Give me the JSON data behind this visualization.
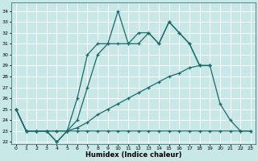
{
  "xlabel": "Humidex (Indice chaleur)",
  "bg_color": "#c8e8e8",
  "line_color": "#1a6b6b",
  "grid_color": "#b0d8d8",
  "xlim": [
    -0.5,
    23.5
  ],
  "ylim": [
    21.8,
    34.8
  ],
  "xticks": [
    0,
    1,
    2,
    3,
    4,
    5,
    6,
    7,
    8,
    9,
    10,
    11,
    12,
    13,
    14,
    15,
    16,
    17,
    18,
    19,
    20,
    21,
    22,
    23
  ],
  "yticks": [
    22,
    23,
    24,
    25,
    26,
    27,
    28,
    29,
    30,
    31,
    32,
    33,
    34
  ],
  "series": [
    {
      "x": [
        0,
        1,
        2,
        3,
        4,
        5,
        6,
        7,
        8,
        9,
        10,
        11,
        12,
        13,
        14,
        15,
        16,
        17,
        18,
        19
      ],
      "y": [
        25,
        23,
        23,
        23,
        22,
        23,
        26,
        30,
        31,
        31,
        34,
        31,
        31,
        32,
        31,
        33,
        32,
        31,
        29,
        29
      ]
    },
    {
      "x": [
        0,
        1,
        2,
        3,
        4,
        5,
        6,
        7,
        8,
        9,
        10,
        11,
        12,
        13,
        14,
        15,
        16,
        17,
        18,
        19
      ],
      "y": [
        25,
        23,
        23,
        23,
        22,
        23,
        24,
        27,
        30,
        31,
        31,
        31,
        32,
        32,
        31,
        33,
        32,
        31,
        29,
        29
      ]
    },
    {
      "x": [
        0,
        1,
        2,
        3,
        4,
        5,
        6,
        7,
        8,
        9,
        10,
        11,
        12,
        13,
        14,
        15,
        16,
        17,
        18,
        19,
        20,
        21,
        22,
        23
      ],
      "y": [
        25,
        23,
        23,
        23,
        23,
        23,
        23,
        23,
        23,
        23,
        23,
        23,
        23,
        23,
        23,
        23,
        23,
        23,
        23,
        23,
        23,
        23,
        23,
        23
      ]
    },
    {
      "x": [
        0,
        1,
        2,
        3,
        4,
        5,
        6,
        7,
        8,
        9,
        10,
        11,
        12,
        13,
        14,
        15,
        16,
        17,
        18,
        19,
        20,
        21,
        22,
        23
      ],
      "y": [
        25,
        23,
        23,
        23,
        23,
        23,
        23.3,
        23.8,
        24.5,
        25,
        25.5,
        26,
        26.5,
        27,
        27.5,
        28,
        28.3,
        28.8,
        29,
        29,
        25.5,
        24,
        23,
        23
      ]
    }
  ]
}
